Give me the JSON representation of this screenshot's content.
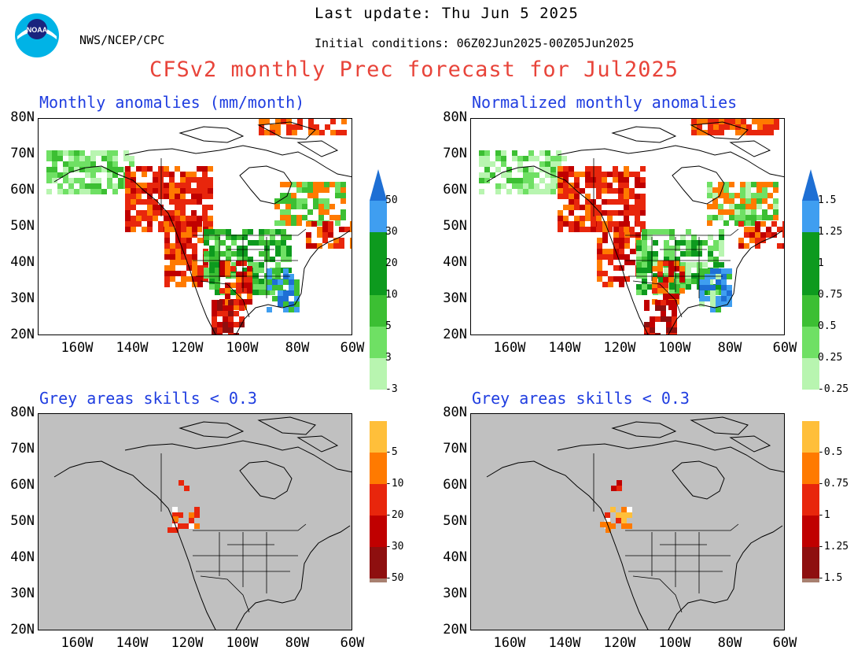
{
  "header": {
    "agency": "NWS/NCEP/CPC",
    "last_update": "Last update: Thu Jun  5 2025",
    "initial_conditions": "Initial conditions: 06Z02Jun2025-00Z05Jun2025",
    "title": "CFSv2 monthly Prec forecast for Jul2025",
    "logo_text": "NOAA"
  },
  "panels": [
    {
      "title": "Monthly anomalies (mm/month)",
      "kind": "anomaly"
    },
    {
      "title": "Normalized monthly anomalies",
      "kind": "normalized"
    },
    {
      "title": "Grey areas skills < 0.3",
      "kind": "skill"
    },
    {
      "title": "Grey areas skills < 0.3",
      "kind": "skill"
    }
  ],
  "axes": {
    "lat_labels": [
      "80N",
      "70N",
      "60N",
      "50N",
      "40N",
      "30N",
      "20N"
    ],
    "lon_labels": [
      "160W",
      "140W",
      "120W",
      "100W",
      "80W",
      "60W"
    ]
  },
  "colorbar_left": {
    "labels": [
      "50",
      "30",
      "20",
      "10",
      "5",
      "3",
      "-3",
      "-5",
      "-10",
      "-20",
      "-30",
      "-50"
    ]
  },
  "colorbar_right": {
    "labels": [
      "1.5",
      "1.25",
      "1",
      "0.75",
      "0.5",
      "0.25",
      "-0.25",
      "-0.5",
      "-0.75",
      "-1",
      "-1.25",
      "-1.5"
    ]
  },
  "colors": {
    "title": "#e8443a",
    "panel_title": "#1f3de0",
    "skill_grey": "#c0c0c0",
    "positive": [
      "#1e6fd4",
      "#3f9ef0",
      "#0d9a1e",
      "#3cbf33",
      "#6fe064",
      "#b8f5b0"
    ],
    "negative": [
      "#ffbf3a",
      "#ff7a00",
      "#e8260c",
      "#c00000",
      "#8e0f0f",
      "#a88070"
    ],
    "cb_top": "#1e6fd4",
    "cb_bottom_left": "#6b4036",
    "cb_bottom_right": "#6b4036"
  }
}
